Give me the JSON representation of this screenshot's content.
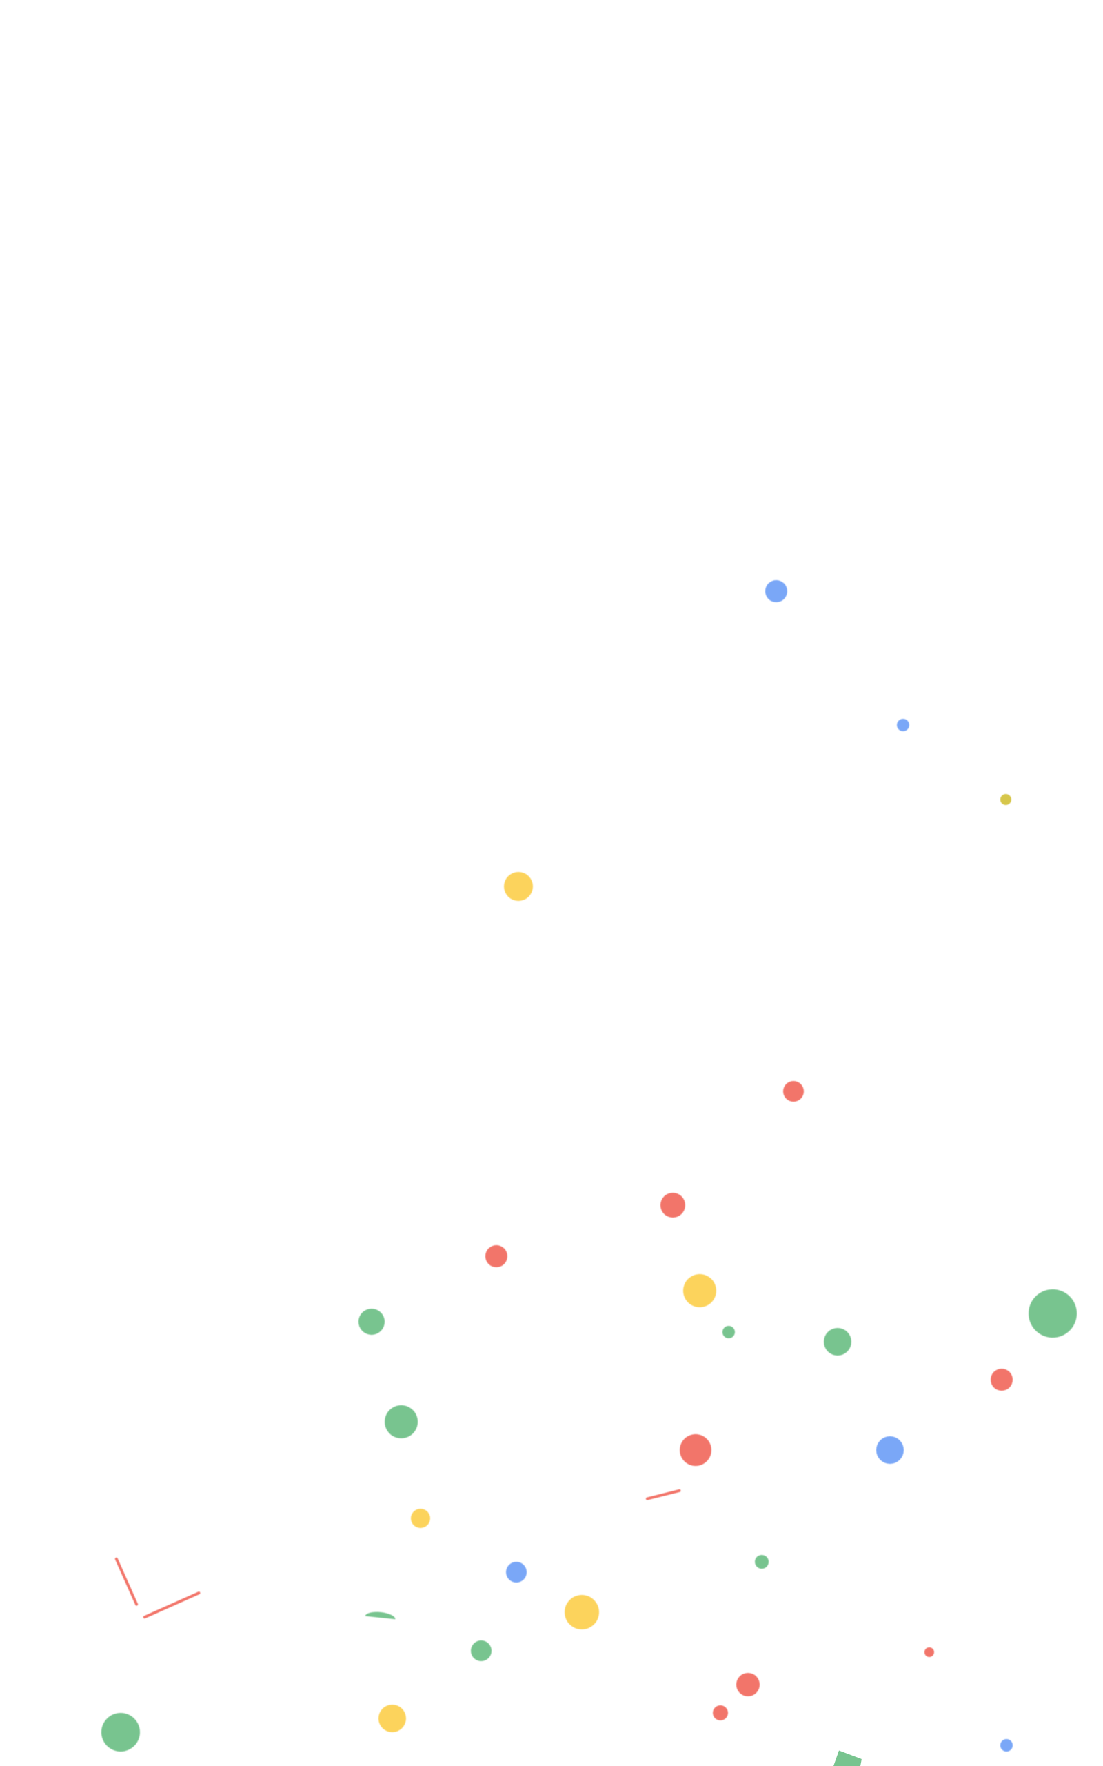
{
  "screen": {
    "description_text": "",
    "background": "#ffffff"
  },
  "palette": {
    "blue": "#7aa7f7",
    "red": "#f2756a",
    "yellow": "#fcd35c",
    "green": "#78c48f",
    "olive": "#d6c64a"
  },
  "confetti": {
    "type": "celebration-confetti-overlay",
    "colors_present": [
      "blue",
      "red",
      "yellow",
      "green"
    ]
  }
}
